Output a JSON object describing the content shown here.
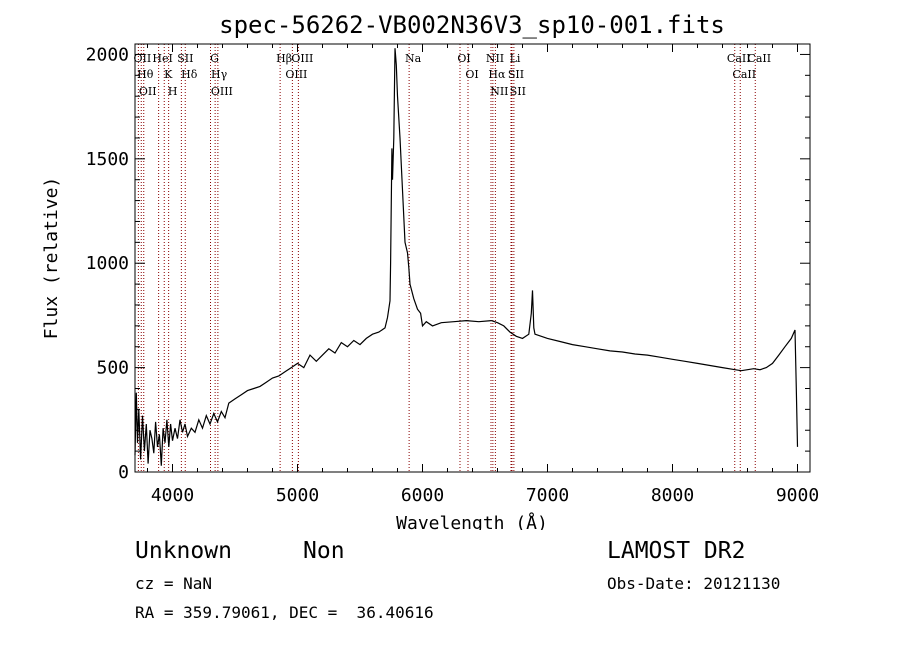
{
  "chart_data": {
    "type": "line",
    "title": "spec-56262-VB002N36V3_sp10-001.fits",
    "xlabel": "Wavelength (Å)",
    "ylabel": "Flux (relative)",
    "xlim": [
      3700,
      9100
    ],
    "ylim": [
      0,
      2050
    ],
    "x_ticks": [
      4000,
      5000,
      6000,
      7000,
      8000,
      9000
    ],
    "y_ticks": [
      0,
      500,
      1000,
      1500,
      2000
    ],
    "grid": false,
    "series": [
      {
        "x": [
          3700,
          3710,
          3720,
          3730,
          3745,
          3760,
          3775,
          3790,
          3805,
          3820,
          3835,
          3850,
          3865,
          3880,
          3895,
          3910,
          3925,
          3940,
          3955,
          3970,
          3985,
          4000,
          4020,
          4040,
          4060,
          4080,
          4100,
          4120,
          4150,
          4180,
          4210,
          4240,
          4270,
          4300,
          4330,
          4360,
          4390,
          4420,
          4450,
          4500,
          4550,
          4600,
          4650,
          4700,
          4750,
          4800,
          4850,
          4900,
          4950,
          5000,
          5050,
          5100,
          5150,
          5200,
          5250,
          5300,
          5350,
          5400,
          5450,
          5500,
          5550,
          5600,
          5650,
          5700,
          5720,
          5740,
          5745,
          5755,
          5760,
          5770,
          5780,
          5790,
          5800,
          5820,
          5840,
          5860,
          5880,
          5890,
          5900,
          5930,
          5960,
          5985,
          6000,
          6030,
          6080,
          6150,
          6250,
          6350,
          6450,
          6550,
          6600,
          6650,
          6700,
          6750,
          6800,
          6850,
          6870,
          6880,
          6890,
          6900,
          6950,
          7000,
          7100,
          7200,
          7300,
          7400,
          7500,
          7600,
          7700,
          7800,
          7900,
          8000,
          8100,
          8200,
          8300,
          8400,
          8500,
          8550,
          8600,
          8650,
          8700,
          8750,
          8800,
          8850,
          8900,
          8950,
          8980,
          8990,
          9000
        ],
        "y": [
          80,
          380,
          140,
          300,
          60,
          270,
          100,
          230,
          40,
          200,
          160,
          90,
          240,
          120,
          180,
          30,
          210,
          140,
          250,
          120,
          230,
          150,
          210,
          160,
          250,
          190,
          230,
          170,
          210,
          190,
          250,
          210,
          270,
          230,
          280,
          240,
          290,
          260,
          330,
          350,
          370,
          390,
          400,
          410,
          430,
          450,
          460,
          480,
          500,
          520,
          500,
          560,
          530,
          560,
          590,
          570,
          620,
          600,
          630,
          610,
          640,
          660,
          670,
          690,
          740,
          820,
          1000,
          1550,
          1400,
          1600,
          2030,
          1950,
          1800,
          1600,
          1350,
          1100,
          1050,
          980,
          900,
          830,
          780,
          760,
          700,
          720,
          700,
          715,
          720,
          725,
          720,
          725,
          715,
          700,
          670,
          650,
          640,
          660,
          760,
          870,
          690,
          660,
          650,
          640,
          625,
          610,
          600,
          590,
          580,
          575,
          565,
          560,
          550,
          540,
          530,
          520,
          510,
          500,
          490,
          485,
          490,
          495,
          490,
          500,
          520,
          560,
          600,
          640,
          680,
          400,
          120
        ]
      }
    ],
    "lines": [
      {
        "wavelength": 3727,
        "label": "OII"
      },
      {
        "wavelength": 3750,
        "label": "Hθ"
      },
      {
        "wavelength": 3770,
        "label": "OII"
      },
      {
        "wavelength": 3889,
        "label": "HeI"
      },
      {
        "wavelength": 3934,
        "label": "K"
      },
      {
        "wavelength": 3969,
        "label": "H"
      },
      {
        "wavelength": 4071,
        "label": "SII"
      },
      {
        "wavelength": 4102,
        "label": "Hδ"
      },
      {
        "wavelength": 4304,
        "label": "G"
      },
      {
        "wavelength": 4341,
        "label": "Hγ"
      },
      {
        "wavelength": 4363,
        "label": "OIII"
      },
      {
        "wavelength": 4861,
        "label": "Hβ"
      },
      {
        "wavelength": 4959,
        "label": "OIII"
      },
      {
        "wavelength": 5007,
        "label": "OIII"
      },
      {
        "wavelength": 5893,
        "label": "Na"
      },
      {
        "wavelength": 6300,
        "label": "OI"
      },
      {
        "wavelength": 6364,
        "label": "OI"
      },
      {
        "wavelength": 6548,
        "label": "NII"
      },
      {
        "wavelength": 6563,
        "label": "Hα"
      },
      {
        "wavelength": 6583,
        "label": "NII"
      },
      {
        "wavelength": 6708,
        "label": "Li"
      },
      {
        "wavelength": 6716,
        "label": "SII"
      },
      {
        "wavelength": 6731,
        "label": "SII"
      },
      {
        "wavelength": 8498,
        "label": "CaII"
      },
      {
        "wavelength": 8542,
        "label": "CaII"
      },
      {
        "wavelength": 8662,
        "label": "CaII"
      }
    ]
  },
  "info": {
    "class": "Unknown",
    "subclass": "Non",
    "survey": "LAMOST DR2",
    "cz": "cz = NaN",
    "obs_date": "Obs-Date: 20121130",
    "coords": "RA = 359.79061, DEC =  36.40616"
  },
  "colors": {
    "line_marker": "#8b0000",
    "spectrum": "#000000"
  }
}
